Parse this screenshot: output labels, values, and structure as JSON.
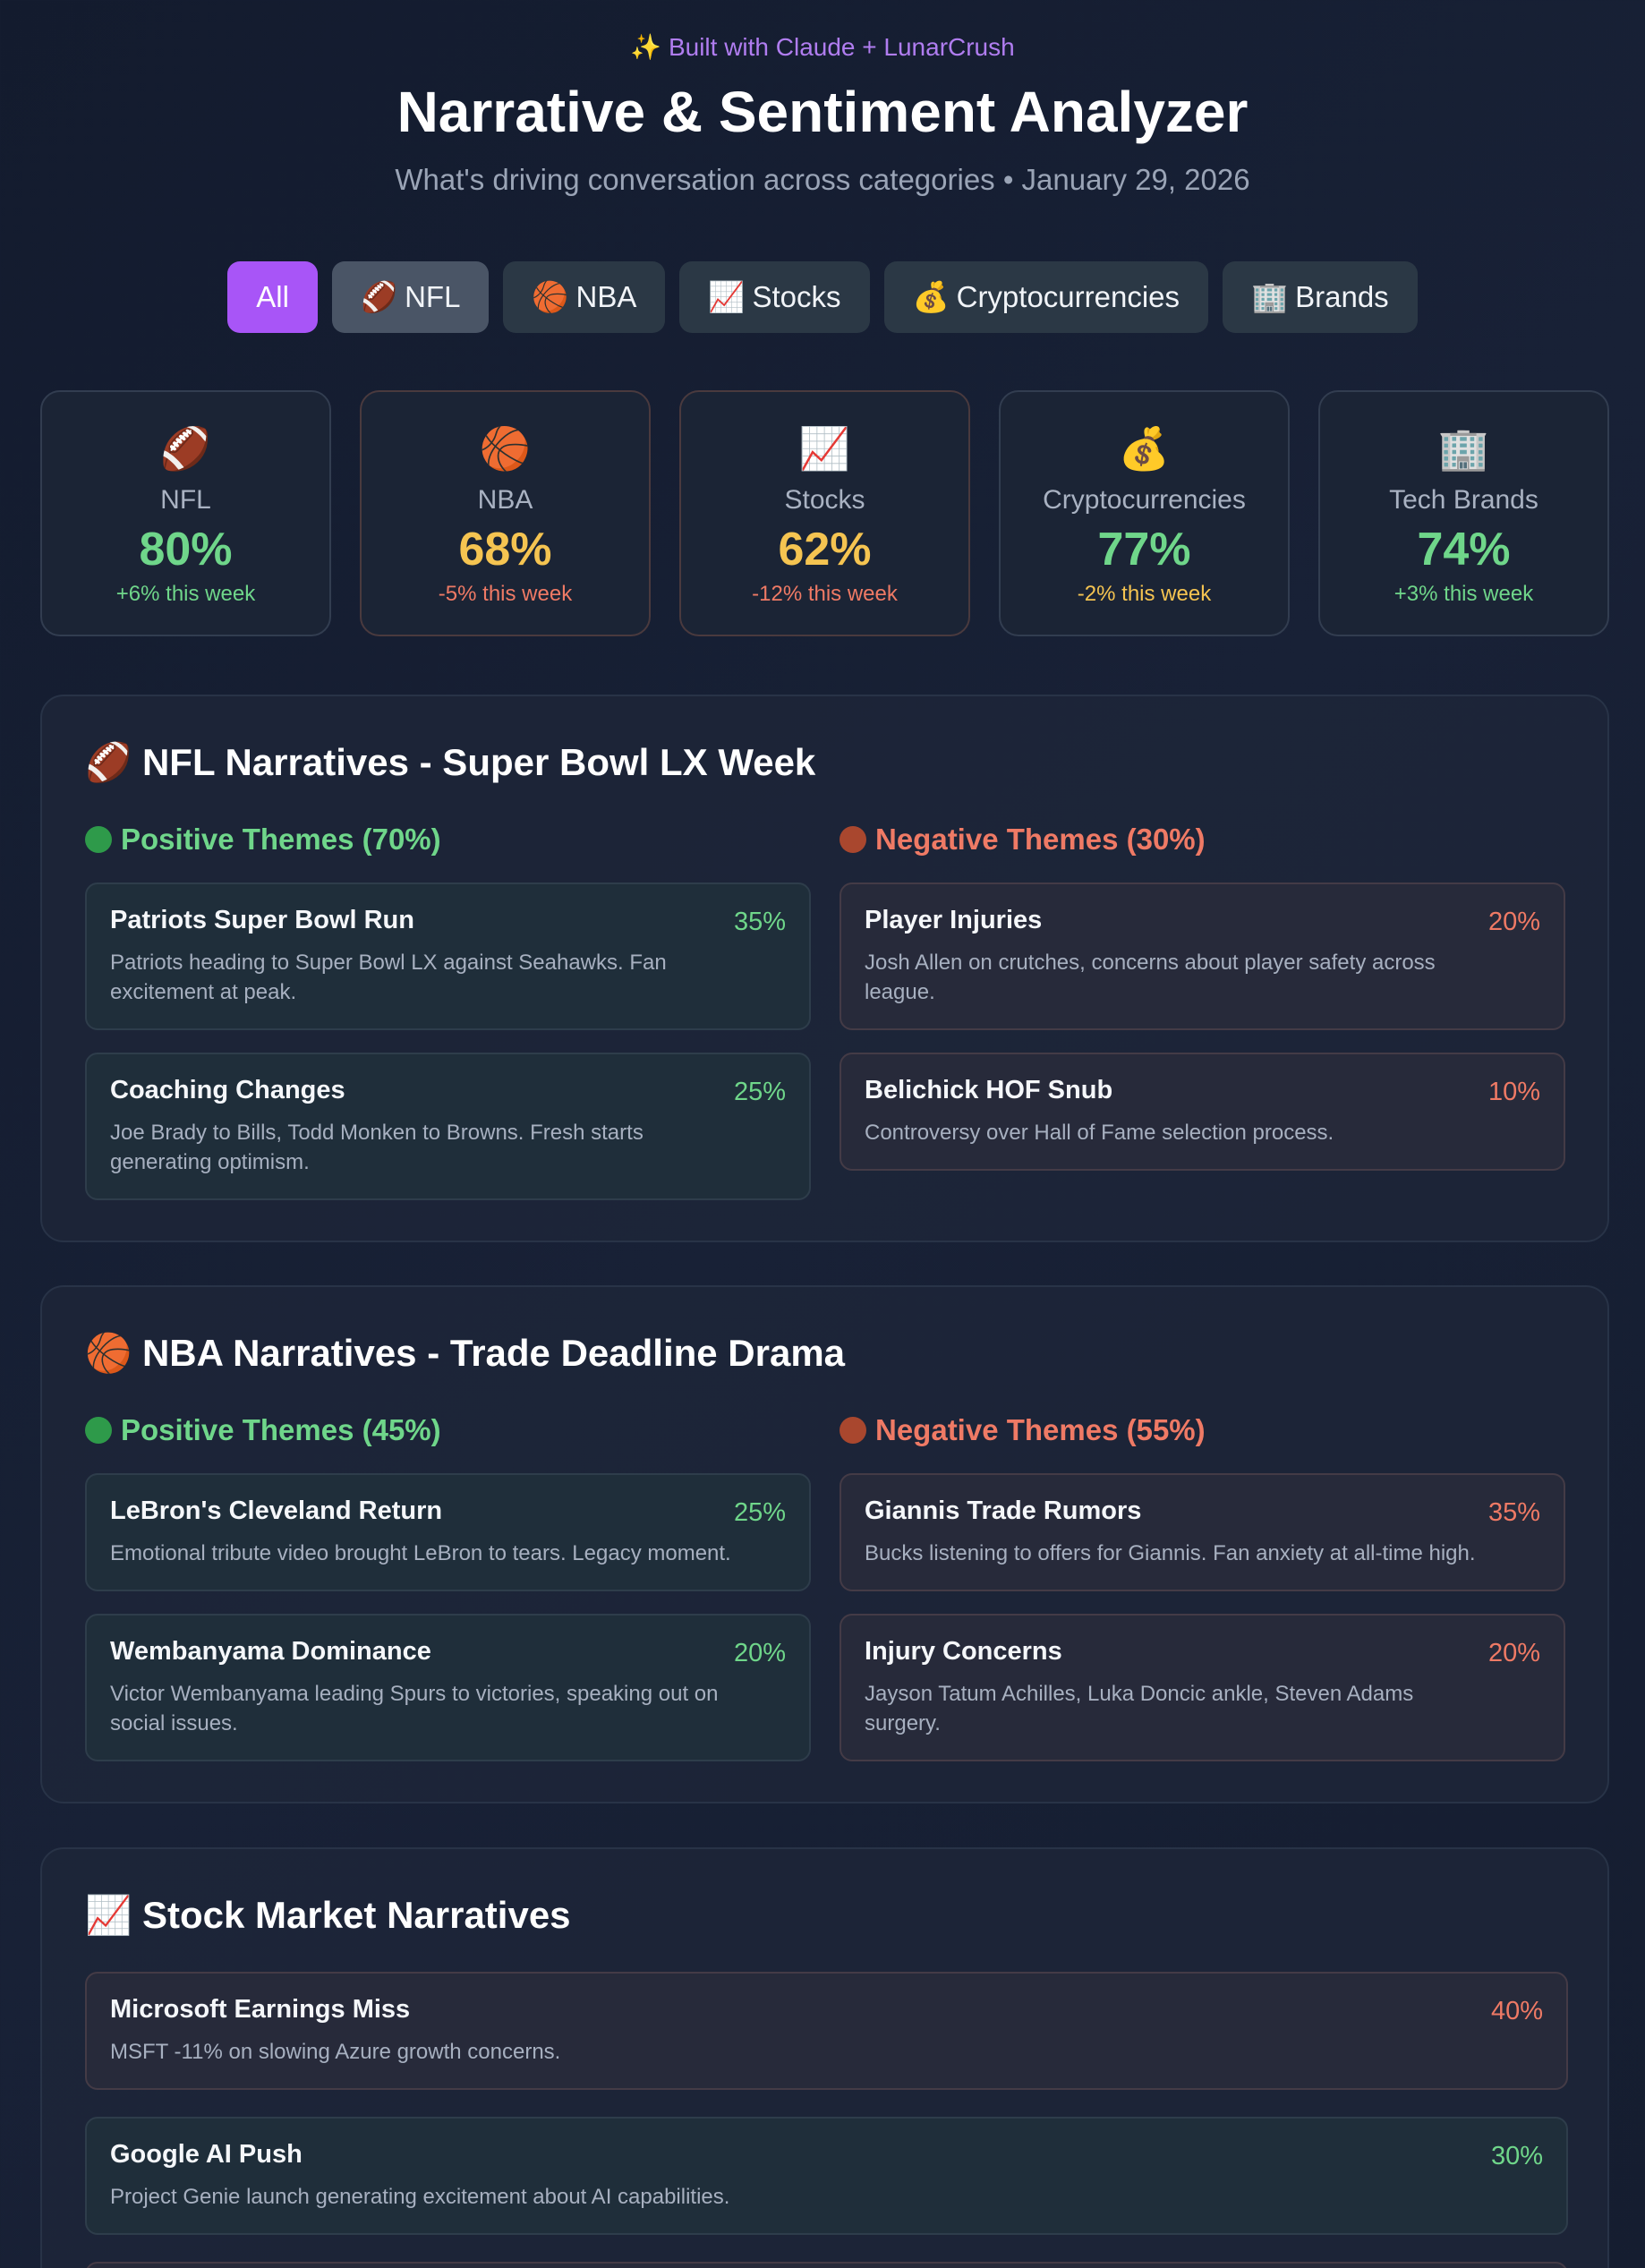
{
  "header": {
    "built_with": "✨ Built with Claude + LunarCrush",
    "title": "Narrative & Sentiment Analyzer",
    "subtitle": "What's driving conversation across categories • January 29, 2026"
  },
  "tabs": [
    {
      "label": "All",
      "icon": "",
      "state": "active"
    },
    {
      "label": "NFL",
      "icon": "🏈",
      "state": "hover"
    },
    {
      "label": "NBA",
      "icon": "🏀",
      "state": ""
    },
    {
      "label": "Stocks",
      "icon": "📈",
      "state": ""
    },
    {
      "label": "Cryptocurrencies",
      "icon": "💰",
      "state": ""
    },
    {
      "label": "Brands",
      "icon": "🏢",
      "state": ""
    }
  ],
  "stats": [
    {
      "icon": "🏈",
      "name": "NFL",
      "value": "80%",
      "change": "+6% this week",
      "value_color": "#6fd68a",
      "change_color": "#6fd68a"
    },
    {
      "icon": "🏀",
      "name": "NBA",
      "value": "68%",
      "change": "-5% this week",
      "value_color": "#f5c451",
      "change_color": "#ef7a65"
    },
    {
      "icon": "📈",
      "name": "Stocks",
      "value": "62%",
      "change": "-12% this week",
      "value_color": "#f5c451",
      "change_color": "#ef7a65"
    },
    {
      "icon": "💰",
      "name": "Cryptocurrencies",
      "value": "77%",
      "change": "-2% this week",
      "value_color": "#6fd68a",
      "change_color": "#f5c451"
    },
    {
      "icon": "🏢",
      "name": "Tech Brands",
      "value": "74%",
      "change": "+3% this week",
      "value_color": "#6fd68a",
      "change_color": "#6fd68a"
    }
  ],
  "nfl": {
    "title": "🏈 NFL Narratives - Super Bowl LX Week",
    "positive_head": "Positive Themes (70%)",
    "negative_head": "Negative Themes (30%)",
    "positive": [
      {
        "title": "Patriots Super Bowl Run",
        "pct": "35%",
        "desc": "Patriots heading to Super Bowl LX against Seahawks. Fan excitement at peak."
      },
      {
        "title": "Coaching Changes",
        "pct": "25%",
        "desc": "Joe Brady to Bills, Todd Monken to Browns. Fresh starts generating optimism."
      }
    ],
    "negative": [
      {
        "title": "Player Injuries",
        "pct": "20%",
        "desc": "Josh Allen on crutches, concerns about player safety across league."
      },
      {
        "title": "Belichick HOF Snub",
        "pct": "10%",
        "desc": "Controversy over Hall of Fame selection process."
      }
    ]
  },
  "nba": {
    "title": "🏀 NBA Narratives - Trade Deadline Drama",
    "positive_head": "Positive Themes (45%)",
    "negative_head": "Negative Themes (55%)",
    "positive": [
      {
        "title": "LeBron's Cleveland Return",
        "pct": "25%",
        "desc": "Emotional tribute video brought LeBron to tears. Legacy moment."
      },
      {
        "title": "Wembanyama Dominance",
        "pct": "20%",
        "desc": "Victor Wembanyama leading Spurs to victories, speaking out on social issues."
      }
    ],
    "negative": [
      {
        "title": "Giannis Trade Rumors",
        "pct": "35%",
        "desc": "Bucks listening to offers for Giannis. Fan anxiety at all-time high."
      },
      {
        "title": "Injury Concerns",
        "pct": "20%",
        "desc": "Jayson Tatum Achilles, Luka Doncic ankle, Steven Adams surgery."
      }
    ]
  },
  "stocks": {
    "title": "📈 Stock Market Narratives",
    "items": [
      {
        "title": "Microsoft Earnings Miss",
        "pct": "40%",
        "desc": "MSFT -11% on slowing Azure growth concerns.",
        "tone": "neg"
      },
      {
        "title": "Google AI Push",
        "pct": "30%",
        "desc": "Project Genie launch generating excitement about AI capabilities.",
        "tone": "pos"
      },
      {
        "title": "",
        "pct": "",
        "desc": "",
        "tone": "neg"
      }
    ]
  },
  "colors": {
    "positive": "#6fd68a",
    "negative": "#ef7a65",
    "neutral": "#f5c451",
    "accent": "#a855f7"
  }
}
